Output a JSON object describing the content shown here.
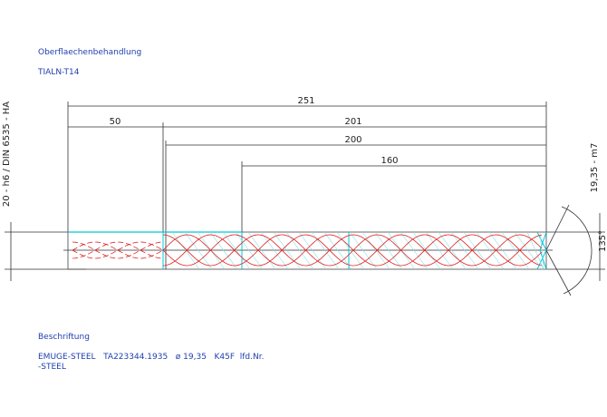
{
  "surface": {
    "heading": "Oberflaechenbehandlung",
    "value": "TIALN-T14"
  },
  "dimensions": {
    "total_length": "251",
    "shank_length": "50",
    "body_length": "201",
    "flute_length_200": "200",
    "flute_length_160": "160",
    "shank_spec": "20 - h6 / DIN 6535 - HA",
    "diameter_spec": "19,35 - m7",
    "point_angle": "135°"
  },
  "marking": {
    "heading": "Beschriftung",
    "line1": "EMUGE-STEEL   TA223344.1935   ø 19,35   K45F  lfd.Nr.",
    "line2": "-STEEL"
  }
}
